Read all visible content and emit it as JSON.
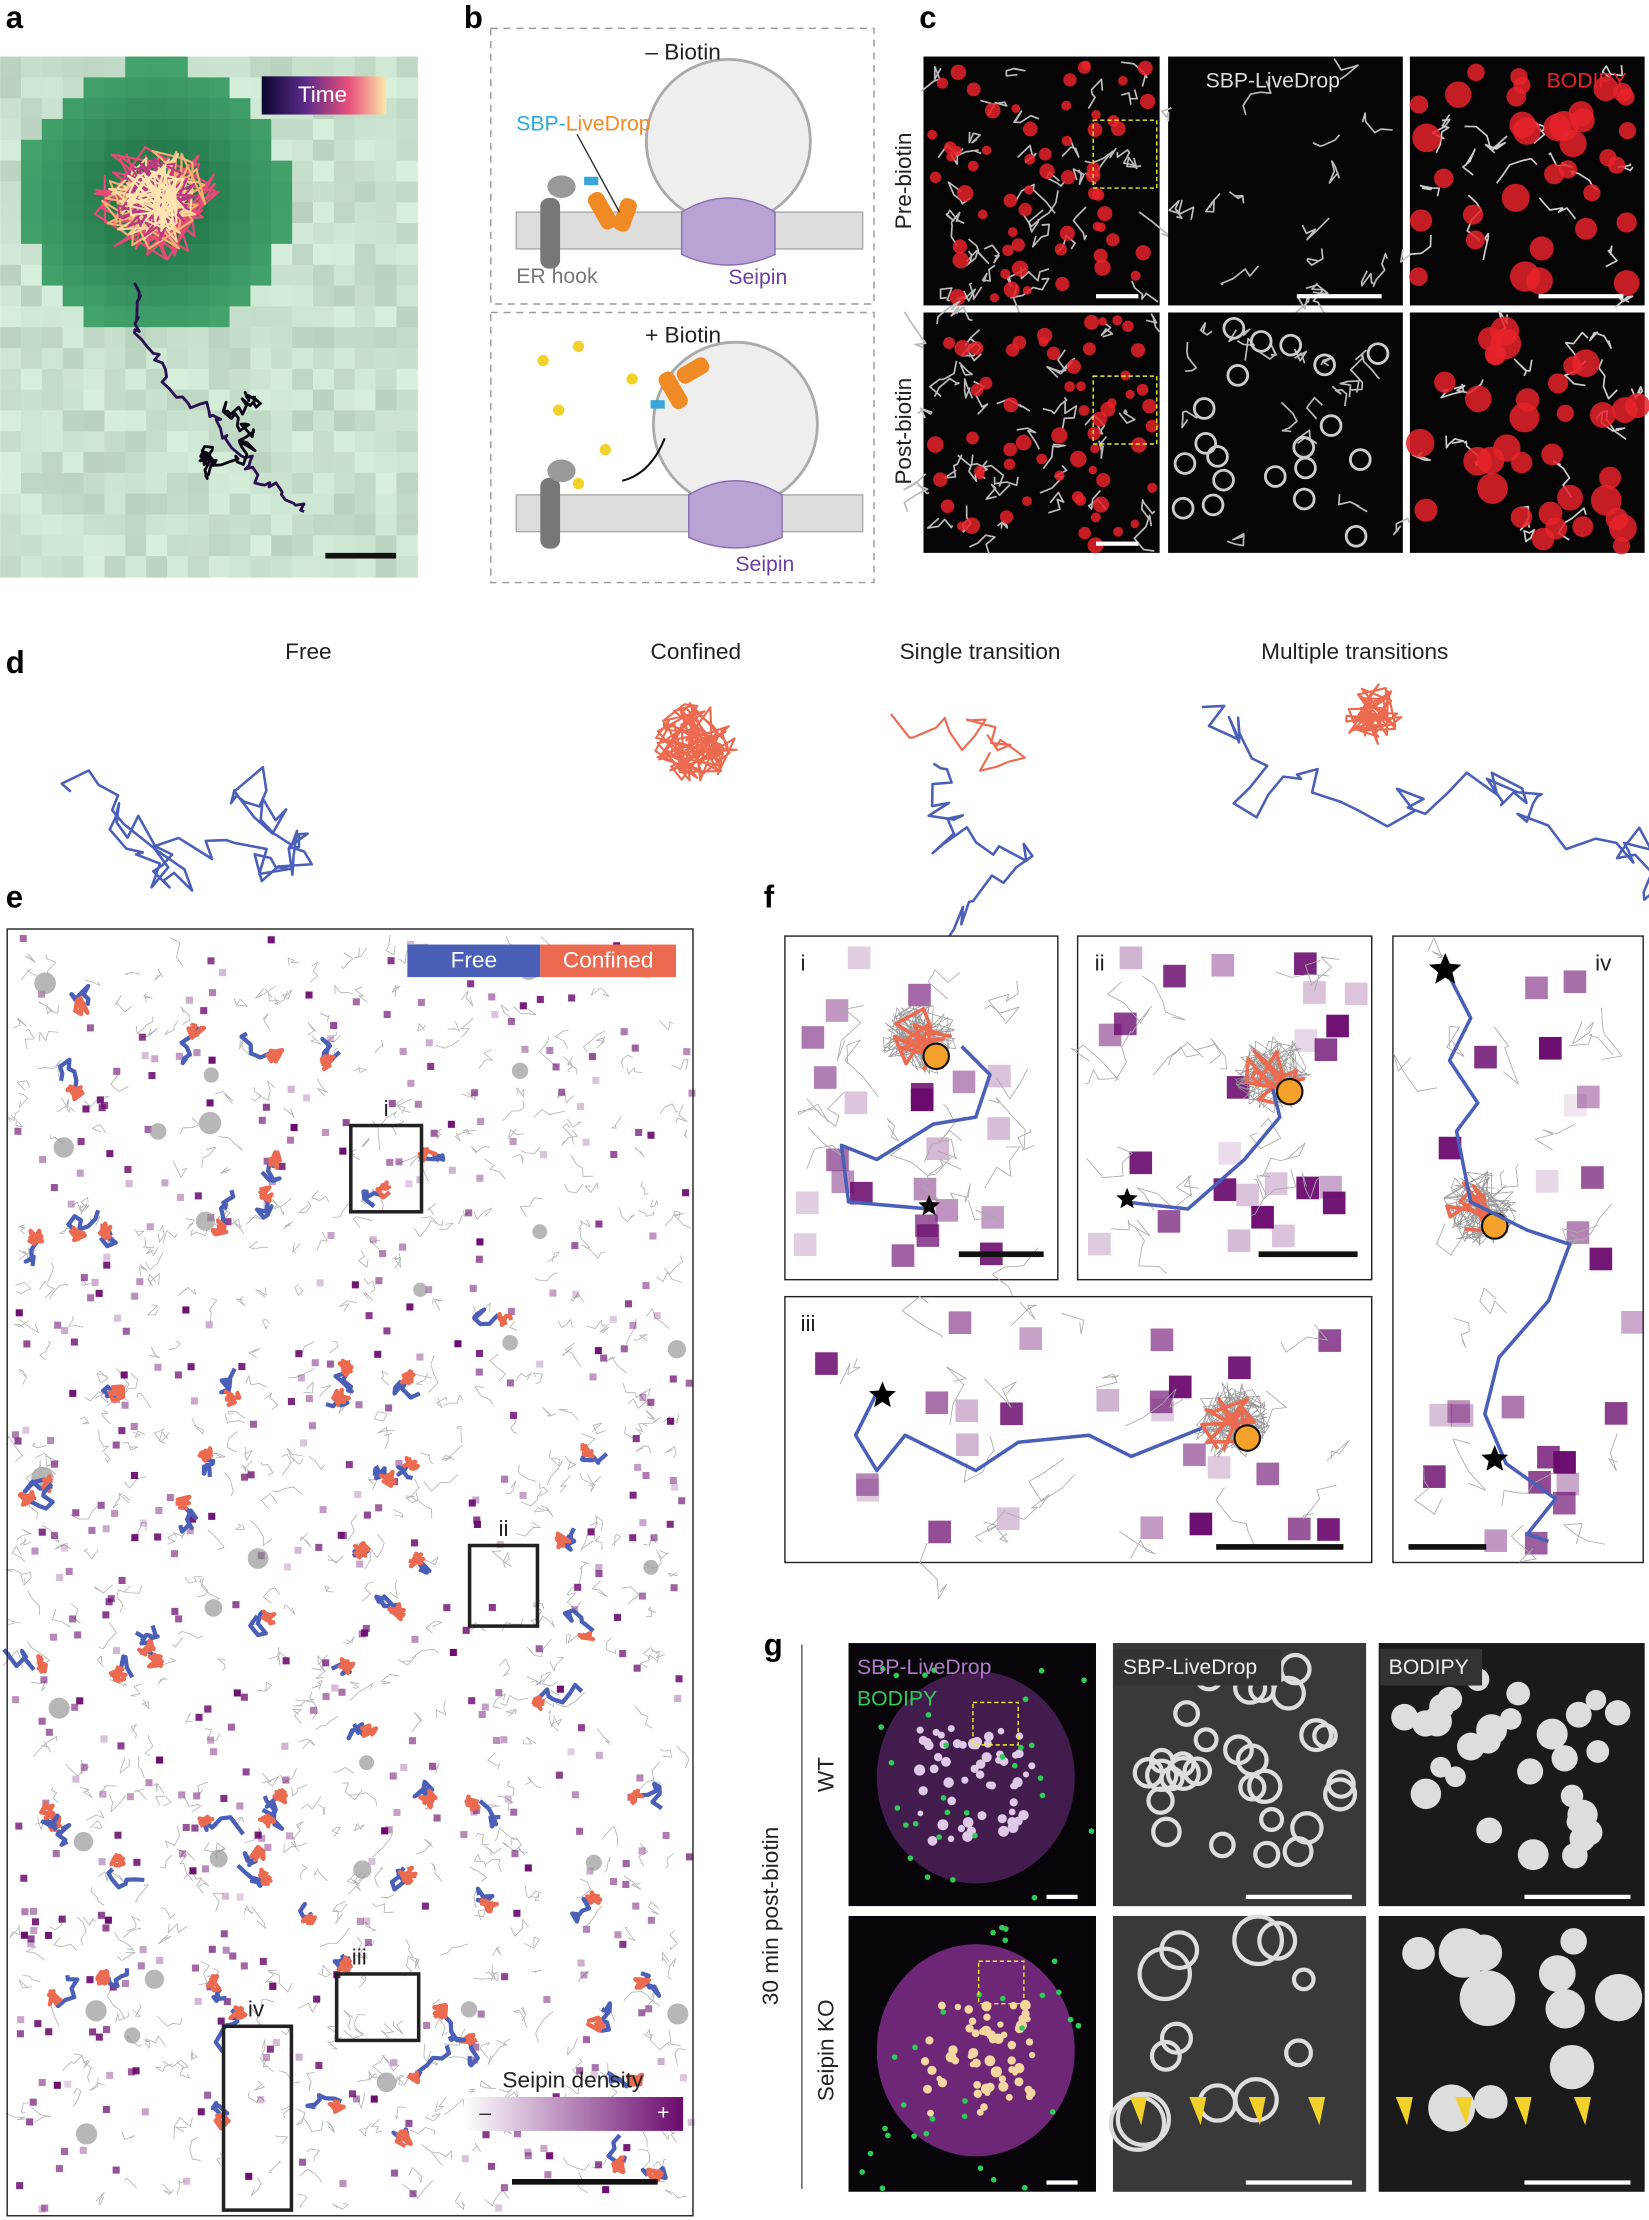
{
  "panels": {
    "a": {
      "letter": "a",
      "colorbar_label": "Time"
    },
    "b": {
      "letter": "b",
      "minus_title": "– Biotin",
      "plus_title": "+ Biotin",
      "probe_prefix": "SBP-",
      "probe_suffix": "LiveDrop",
      "hook": "ER hook",
      "seipin_top": "Seipin",
      "seipin_bottom": "Seipin"
    },
    "c": {
      "letter": "c",
      "channel_1": "SBP-LiveDrop",
      "channel_2": "BODIPY",
      "row_1": "Pre-biotin",
      "row_2": "Post-biotin"
    },
    "d": {
      "letter": "d",
      "classes": [
        "Free",
        "Confined",
        "Single transition",
        "Multiple transitions"
      ]
    },
    "e": {
      "letter": "e",
      "legend": [
        "Free",
        "Confined"
      ],
      "boxes": [
        "i",
        "ii",
        "iii",
        "iv"
      ],
      "density_label": "Seipin density",
      "density_min": "–",
      "density_max": "+"
    },
    "f": {
      "letter": "f",
      "insets": [
        "i",
        "ii",
        "iii",
        "iv"
      ]
    },
    "g": {
      "letter": "g",
      "merge_channel_1": "SBP-LiveDrop",
      "merge_channel_2": "BODIPY",
      "channel_1": "SBP-LiveDrop",
      "channel_2": "BODIPY",
      "row_1": "WT",
      "row_2": "Seipin KO",
      "condition": "30 min post-biotin"
    }
  }
}
